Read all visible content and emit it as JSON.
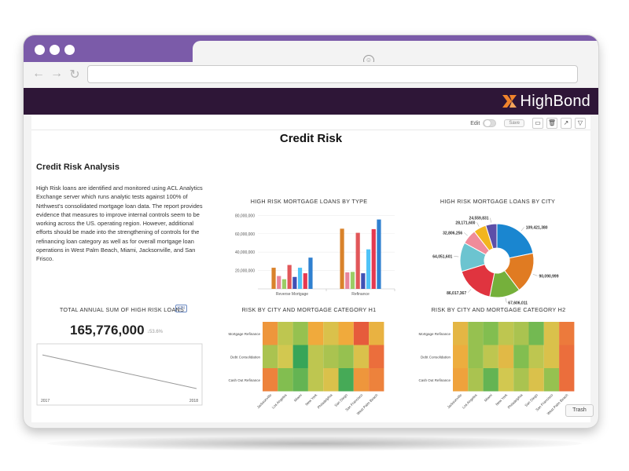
{
  "app": {
    "brand_name": "HighBond",
    "brand_colors": {
      "accent": "#7b5ba9",
      "header": "#2e1637",
      "logo_mark": "#f0842c"
    }
  },
  "toolbar": {
    "edit_label": "Edit",
    "save_label": "Save"
  },
  "page": {
    "title": "Credit Risk",
    "section_title": "Credit Risk Analysis",
    "description": "High Risk loans are identified and monitored using ACL Analytics Exchange server which runs analytic tests against 100% of Nrthwest's consolidated mortgage loan data. The report provides evidence that measures to improve internal controls seem to be working across the US. operating region. However, additional efforts should be made into the strengthening of controls for the refinancing loan category as well as for overall mortgage loan operations in West Palm Beach, Miami, Jacksonville, and San Frisco."
  },
  "kpi": {
    "title": "TOTAL ANNUAL SUM OF HIGH RISK LOANS",
    "badge": "KPI",
    "value": "165,776,000",
    "delta": "↓53.6%"
  },
  "trash_label": "Trash",
  "chart_data": [
    {
      "type": "bar",
      "title": "HIGH RISK MORTGAGE LOANS BY TYPE",
      "categories": [
        "Reverse Mortgage",
        "Refinance"
      ],
      "colors": [
        "#d9822b",
        "#e8849a",
        "#9ccc65",
        "#e15759",
        "#3f51b5",
        "#4fc3f7",
        "#e53950",
        "#2f80d0"
      ],
      "series_values": [
        [
          23000000,
          65500000
        ],
        [
          14000000,
          18000000
        ],
        [
          10500000,
          18500000
        ],
        [
          26000000,
          61000000
        ],
        [
          13000000,
          17000000
        ],
        [
          23000000,
          43000000
        ],
        [
          17000000,
          65000000
        ],
        [
          34000000,
          75500000
        ]
      ],
      "yticks": [
        "20,000,000",
        "40,000,000",
        "60,000,000",
        "80,000,000"
      ],
      "ytick_values": [
        20000000,
        40000000,
        60000000,
        80000000
      ],
      "ylim": [
        0,
        82000000
      ]
    },
    {
      "type": "pie",
      "title": "HIGH RISK MORTGAGE LOANS BY CITY",
      "donut": true,
      "labels": [
        "109,421,380",
        "90,090,999",
        "67,606,011",
        "86,017,367",
        "64,051,601",
        "32,806,256",
        "28,171,600",
        "24,559,831"
      ],
      "values": [
        109421380,
        90090999,
        67606011,
        86017367,
        64051601,
        32806256,
        28171600,
        24559831
      ],
      "colors": [
        "#1a86d0",
        "#e07b22",
        "#75b03b",
        "#e0343f",
        "#6cc4d0",
        "#f08b9a",
        "#f2b51f",
        "#5c4fa8"
      ]
    },
    {
      "type": "heatmap",
      "title": "RISK BY CITY AND MORTGAGE CATEGORY H1",
      "rows": [
        "Mortgage Refinance",
        "Debt Consolidation",
        "Cash Out Refinance"
      ],
      "columns": [
        "Jacksonville",
        "Los Angeles",
        "Miami",
        "New York",
        "Philadelphia",
        "San Diego",
        "San Francisco",
        "West Palm Beach"
      ],
      "values": [
        [
          0.75,
          0.45,
          0.35,
          0.7,
          0.55,
          0.7,
          0.92,
          0.65
        ],
        [
          0.4,
          0.5,
          0.05,
          0.45,
          0.4,
          0.35,
          0.55,
          0.85
        ],
        [
          0.8,
          0.3,
          0.2,
          0.45,
          0.55,
          0.1,
          0.75,
          0.8
        ]
      ]
    },
    {
      "type": "heatmap",
      "title": "RISK BY CITY AND MORTGAGE CATEGORY H2",
      "rows": [
        "Mortgage Refinance",
        "Debt Consolidation",
        "Cash Out Refinance"
      ],
      "columns": [
        "Jacksonville",
        "Los Angeles",
        "Miami",
        "New York",
        "Philadelphia",
        "San Diego",
        "San Francisco",
        "West Palm Beach"
      ],
      "values": [
        [
          0.62,
          0.35,
          0.3,
          0.45,
          0.4,
          0.25,
          0.55,
          0.82
        ],
        [
          0.68,
          0.35,
          0.45,
          0.6,
          0.3,
          0.45,
          0.55,
          0.85
        ],
        [
          0.72,
          0.4,
          0.2,
          0.5,
          0.4,
          0.55,
          0.35,
          0.85
        ]
      ]
    },
    {
      "type": "line",
      "title": "TOTAL ANNUAL SUM OF HIGH RISK LOANS",
      "x": [
        "2017",
        "2018"
      ],
      "values": [
        357000000,
        165776000
      ]
    }
  ]
}
